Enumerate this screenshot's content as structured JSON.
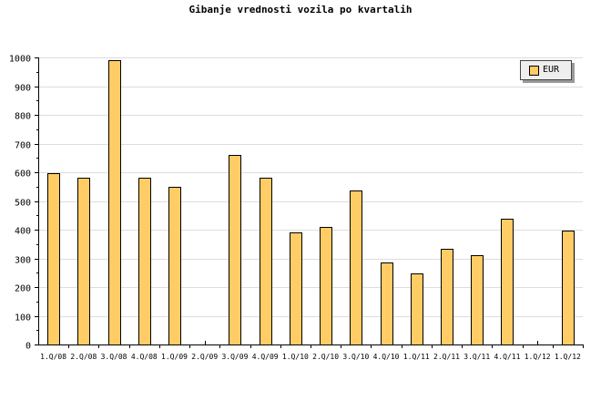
{
  "chart_data": {
    "type": "bar",
    "title": "Gibanje vrednosti vozila po kvartalih",
    "categories": [
      "1.Q/08",
      "2.Q/08",
      "3.Q/08",
      "4.Q/08",
      "1.Q/09",
      "2.Q/09",
      "3.Q/09",
      "4.Q/09",
      "1.Q/10",
      "2.Q/10",
      "3.Q/10",
      "4.Q/10",
      "1.Q/11",
      "2.Q/11",
      "3.Q/11",
      "4.Q/11",
      "1.Q/12",
      "1.Q/12"
    ],
    "series": [
      {
        "name": "EUR",
        "color": "#ffcc66",
        "values": [
          597,
          581,
          990,
          581,
          549,
          0,
          660,
          581,
          390,
          410,
          537,
          286,
          248,
          333,
          311,
          438,
          0,
          397
        ]
      }
    ],
    "ylim": [
      0,
      1000
    ],
    "yticks": [
      0,
      100,
      200,
      300,
      400,
      500,
      600,
      700,
      800,
      900,
      1000
    ],
    "grid": true,
    "legend": "top-right",
    "xlabel": "",
    "ylabel": ""
  }
}
